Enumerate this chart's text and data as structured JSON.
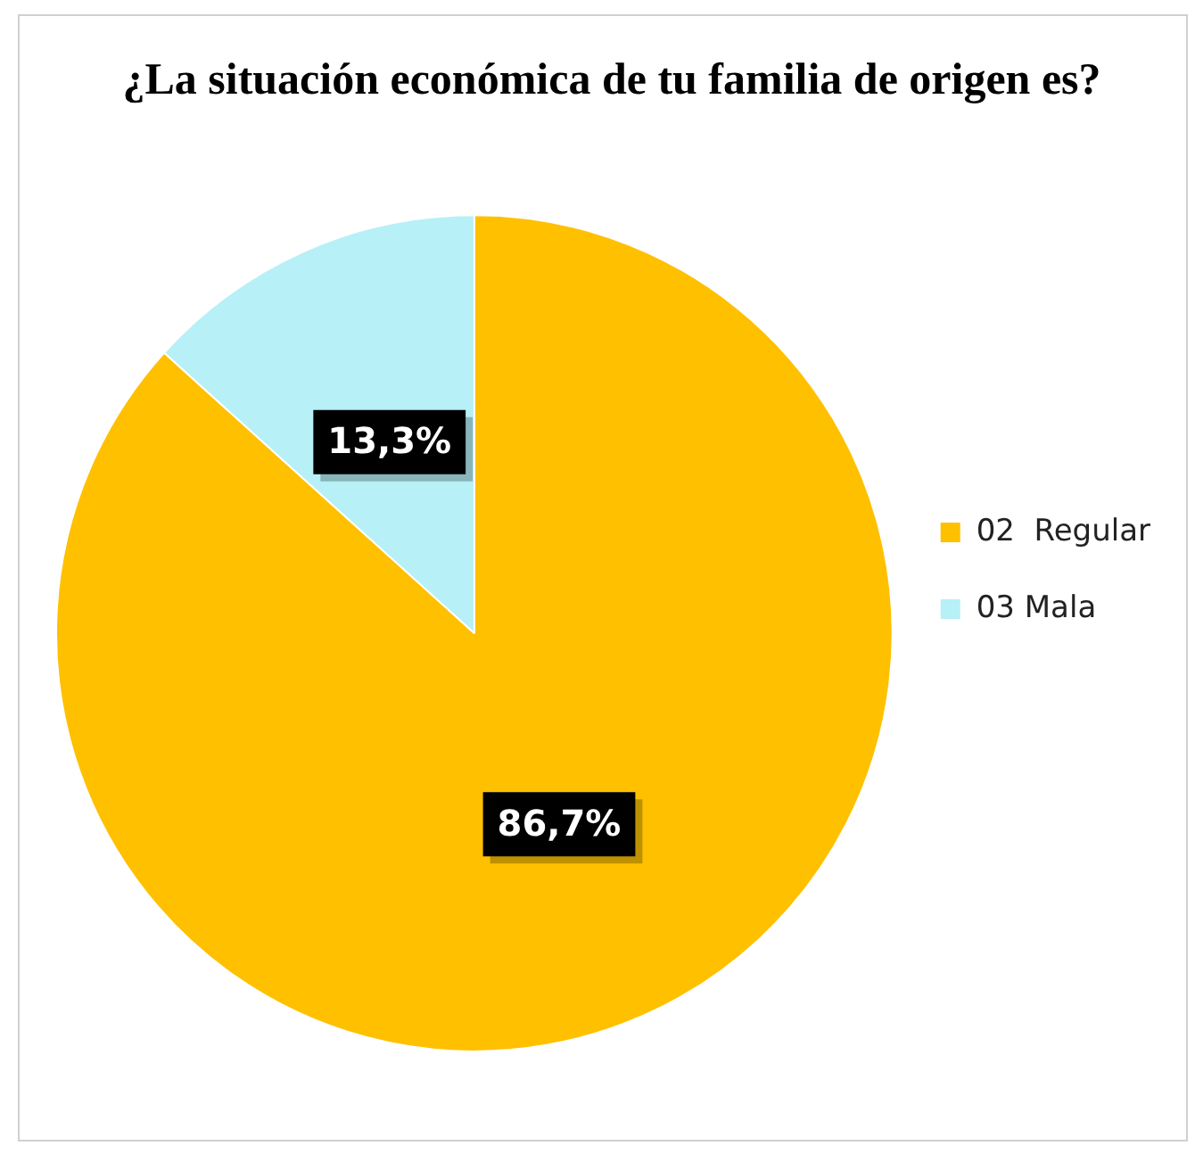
{
  "chart_data": {
    "type": "pie",
    "title": "¿La situación económica de tu familia de origen es?",
    "categories": [
      "02  Regular",
      "03 Mala"
    ],
    "values": [
      86.7,
      13.3
    ],
    "colors": [
      "#ffc000",
      "#b7f0f7"
    ],
    "value_labels": [
      "86,7%",
      "13,3%"
    ],
    "legend": "right"
  }
}
